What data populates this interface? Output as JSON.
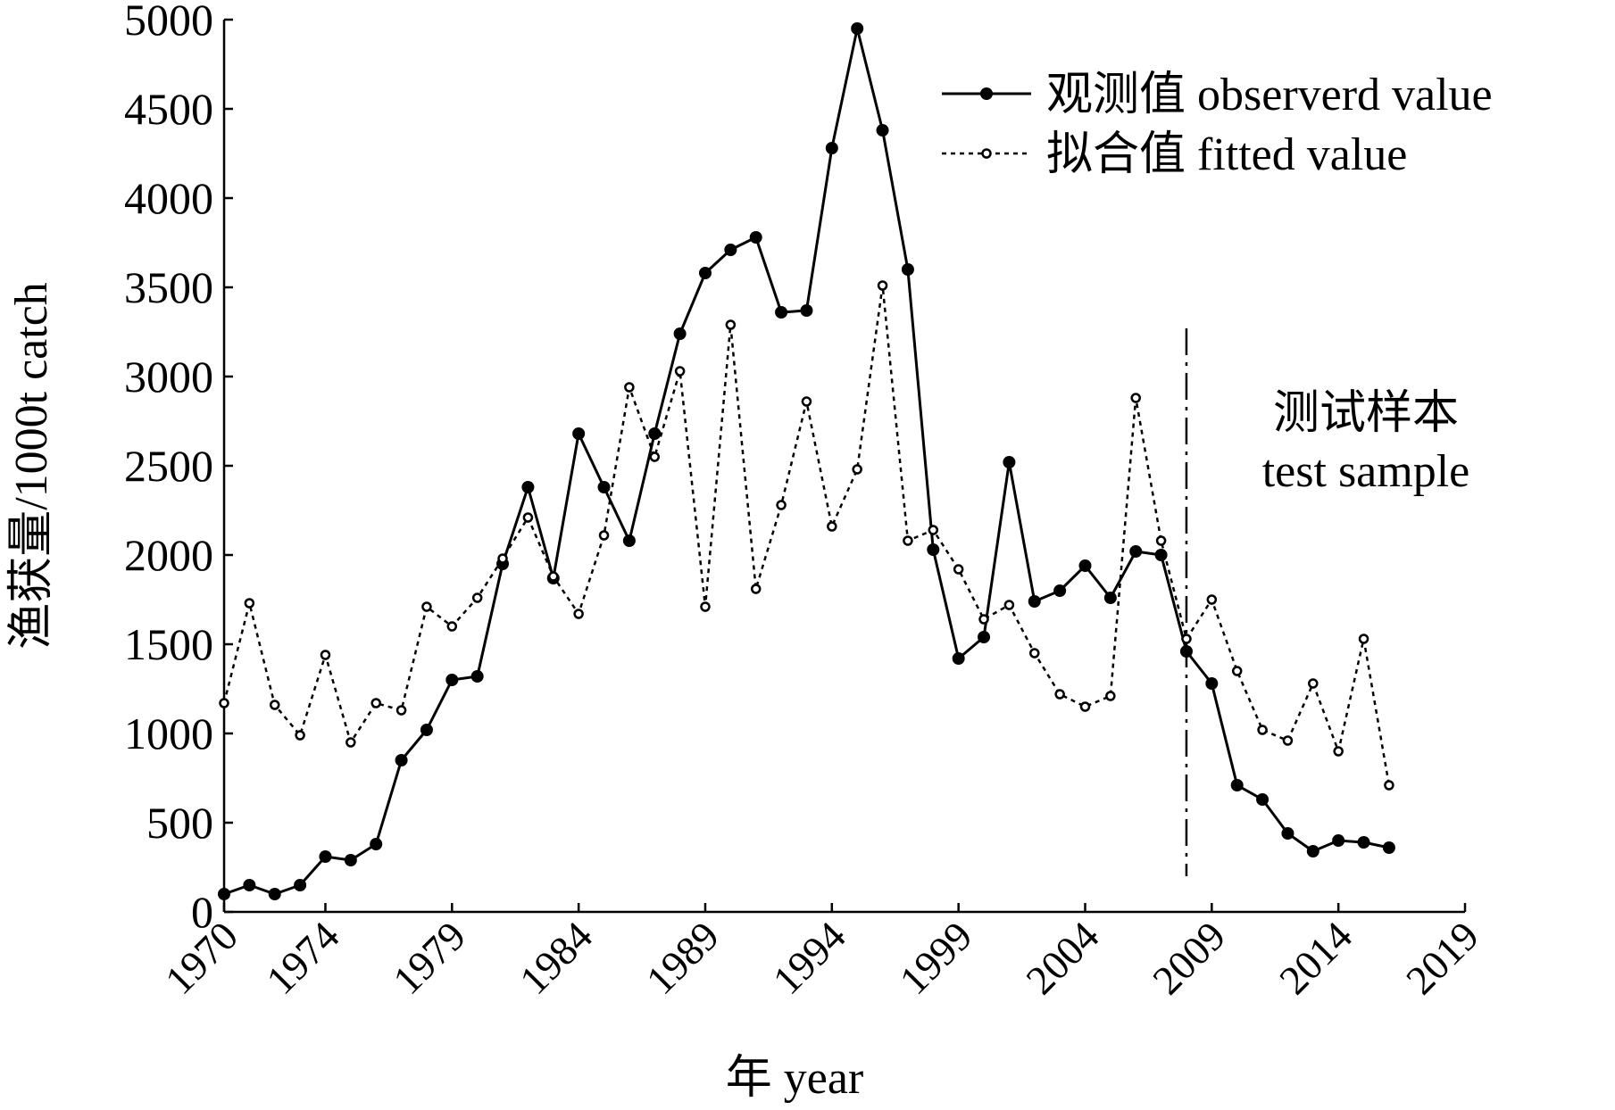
{
  "chart_data": {
    "type": "line",
    "xlabel": "年 year",
    "ylabel": "渔获量/1000t catch",
    "xlim": [
      1970,
      2019
    ],
    "ylim": [
      0,
      5000
    ],
    "x_ticks": [
      "1970",
      "1974",
      "1979",
      "1984",
      "1989",
      "1994",
      "1999",
      "2004",
      "2009",
      "2014",
      "2019"
    ],
    "y_ticks": [
      "0",
      "500",
      "1000",
      "1500",
      "2000",
      "2500",
      "3000",
      "3500",
      "4000",
      "4500",
      "5000"
    ],
    "legend_position": "top-right",
    "annotation": {
      "line1": "测试样本",
      "line2": "test sample",
      "split_year": 2008
    },
    "x": [
      1970,
      1971,
      1972,
      1973,
      1974,
      1975,
      1976,
      1977,
      1978,
      1979,
      1980,
      1981,
      1982,
      1983,
      1984,
      1985,
      1986,
      1987,
      1988,
      1989,
      1990,
      1991,
      1992,
      1993,
      1994,
      1995,
      1996,
      1997,
      1998,
      1999,
      2000,
      2001,
      2002,
      2003,
      2004,
      2005,
      2006,
      2007,
      2008,
      2009,
      2010,
      2011,
      2012,
      2013,
      2014,
      2015,
      2016
    ],
    "series": [
      {
        "name": "观测值 observerd value",
        "style": "solid",
        "marker": "filled-circle",
        "color": "#000000",
        "values": [
          100,
          150,
          100,
          150,
          310,
          290,
          380,
          850,
          1020,
          1300,
          1320,
          1950,
          2380,
          1870,
          2680,
          2380,
          2080,
          2680,
          3240,
          3580,
          3710,
          3780,
          3360,
          3370,
          4280,
          4950,
          4380,
          3600,
          2030,
          1420,
          1540,
          2520,
          1740,
          1800,
          1940,
          1760,
          2020,
          2000,
          1460,
          1280,
          710,
          630,
          440,
          340,
          400,
          390,
          360
        ]
      },
      {
        "name": "拟合值 fitted value",
        "style": "dotted",
        "marker": "open-circle",
        "color": "#000000",
        "values": [
          1170,
          1730,
          1160,
          990,
          1440,
          950,
          1170,
          1130,
          1710,
          1600,
          1760,
          1980,
          2210,
          1880,
          1670,
          2110,
          2940,
          2550,
          3030,
          1710,
          3290,
          1810,
          2280,
          2860,
          2160,
          2480,
          3510,
          2080,
          2140,
          1920,
          1640,
          1720,
          1450,
          1220,
          1150,
          1210,
          2880,
          2080,
          1530,
          1750,
          1350,
          1020,
          960,
          1280,
          900,
          1530,
          710
        ]
      }
    ]
  }
}
